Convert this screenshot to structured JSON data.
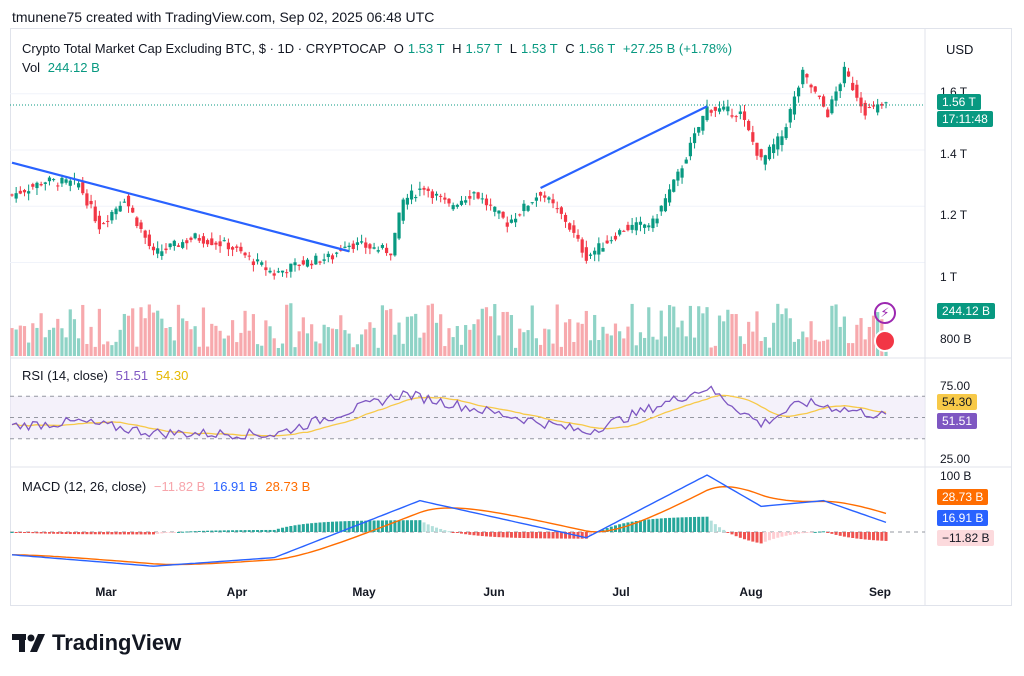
{
  "header": {
    "attribution": "tmunene75 created with TradingView.com, Sep 02, 2025 06:48 UTC"
  },
  "symbol": {
    "title": "Crypto Total Market Cap Excluding BTC, $ · 1D · CRYPTOCAP",
    "o_label": "O",
    "o": "1.53 T",
    "h_label": "H",
    "h": "1.57 T",
    "l_label": "L",
    "l": "1.53 T",
    "c_label": "C",
    "c": "1.56 T",
    "change": "+27.25 B (+1.78%)",
    "vol_label": "Vol",
    "vol": "244.12 B"
  },
  "currency_button": "USD",
  "price_axis": [
    "1.6 T",
    "1.4 T",
    "1.2 T",
    "1 T",
    "800 B"
  ],
  "price_tags": {
    "last_price": "1.56 T",
    "countdown": "17:11:48",
    "volume": "244.12 B"
  },
  "rsi": {
    "label": "RSI (14, close)",
    "value": "51.51",
    "ma_value": "54.30",
    "axis": [
      "75.00",
      "25.00"
    ],
    "tag_ma": "54.30",
    "tag_value": "51.51"
  },
  "macd": {
    "label": "MACD (12, 26, close)",
    "hist": "−11.82 B",
    "macd": "16.91 B",
    "signal": "28.73 B",
    "axis_top": "100 B",
    "tag_signal": "28.73 B",
    "tag_macd": "16.91 B",
    "tag_hist": "−11.82 B"
  },
  "x_axis": [
    "Mar",
    "Apr",
    "May",
    "Jun",
    "Jul",
    "Aug",
    "Sep"
  ],
  "brand": "TradingView",
  "colors": {
    "up": "#089981",
    "down": "#f23645",
    "trendline": "#2962ff",
    "rsi": "#7e57c2",
    "rsi_ma": "#f7c948",
    "macd": "#2962ff",
    "signal": "#ff6d00"
  },
  "chart_data": {
    "type": "candlestick",
    "ylim": [
      760000000000,
      1720000000000
    ],
    "price_anchor_points": [
      {
        "x": "2025-02-04",
        "close": 1240000000000
      },
      {
        "x": "2025-02-12",
        "close": 1290000000000
      },
      {
        "x": "2025-02-20",
        "close": 1280000000000
      },
      {
        "x": "2025-02-25",
        "close": 1130000000000
      },
      {
        "x": "2025-03-03",
        "close": 1230000000000
      },
      {
        "x": "2025-03-10",
        "close": 1030000000000
      },
      {
        "x": "2025-03-20",
        "close": 1090000000000
      },
      {
        "x": "2025-03-28",
        "close": 1060000000000
      },
      {
        "x": "2025-04-08",
        "close": 960000000000
      },
      {
        "x": "2025-04-15",
        "close": 1000000000000
      },
      {
        "x": "2025-04-22",
        "close": 1020000000000
      },
      {
        "x": "2025-04-25",
        "close": 1070000000000
      },
      {
        "x": "2025-05-06",
        "close": 1040000000000
      },
      {
        "x": "2025-05-09",
        "close": 1220000000000
      },
      {
        "x": "2025-05-14",
        "close": 1270000000000
      },
      {
        "x": "2025-05-20",
        "close": 1200000000000
      },
      {
        "x": "2025-05-26",
        "close": 1250000000000
      },
      {
        "x": "2025-06-03",
        "close": 1140000000000
      },
      {
        "x": "2025-06-11",
        "close": 1250000000000
      },
      {
        "x": "2025-06-17",
        "close": 1150000000000
      },
      {
        "x": "2025-06-22",
        "close": 1020000000000
      },
      {
        "x": "2025-07-01",
        "close": 1120000000000
      },
      {
        "x": "2025-07-08",
        "close": 1140000000000
      },
      {
        "x": "2025-07-14",
        "close": 1310000000000
      },
      {
        "x": "2025-07-21",
        "close": 1550000000000
      },
      {
        "x": "2025-07-29",
        "close": 1530000000000
      },
      {
        "x": "2025-08-03",
        "close": 1360000000000
      },
      {
        "x": "2025-08-08",
        "close": 1450000000000
      },
      {
        "x": "2025-08-13",
        "close": 1670000000000
      },
      {
        "x": "2025-08-19",
        "close": 1530000000000
      },
      {
        "x": "2025-08-23",
        "close": 1680000000000
      },
      {
        "x": "2025-08-28",
        "close": 1540000000000
      },
      {
        "x": "2025-09-02",
        "close": 1560000000000
      }
    ],
    "rsi_anchor_points": [
      {
        "x": "2025-02-04",
        "rsi": 40
      },
      {
        "x": "2025-02-20",
        "rsi": 45
      },
      {
        "x": "2025-03-10",
        "rsi": 32
      },
      {
        "x": "2025-04-08",
        "rsi": 30
      },
      {
        "x": "2025-05-09",
        "rsi": 78
      },
      {
        "x": "2025-06-22",
        "rsi": 33
      },
      {
        "x": "2025-07-21",
        "rsi": 85
      },
      {
        "x": "2025-08-03",
        "rsi": 42
      },
      {
        "x": "2025-08-13",
        "rsi": 68
      },
      {
        "x": "2025-09-02",
        "rsi": 51.51
      }
    ],
    "macd_anchor_points": [
      {
        "x": "2025-02-04",
        "macd": -40
      },
      {
        "x": "2025-03-10",
        "macd": -60
      },
      {
        "x": "2025-04-08",
        "macd": -45
      },
      {
        "x": "2025-05-13",
        "macd": 55
      },
      {
        "x": "2025-06-22",
        "macd": -10
      },
      {
        "x": "2025-07-21",
        "macd": 100
      },
      {
        "x": "2025-08-03",
        "macd": 45
      },
      {
        "x": "2025-08-18",
        "macd": 55
      },
      {
        "x": "2025-09-02",
        "macd": 16.91
      }
    ]
  }
}
